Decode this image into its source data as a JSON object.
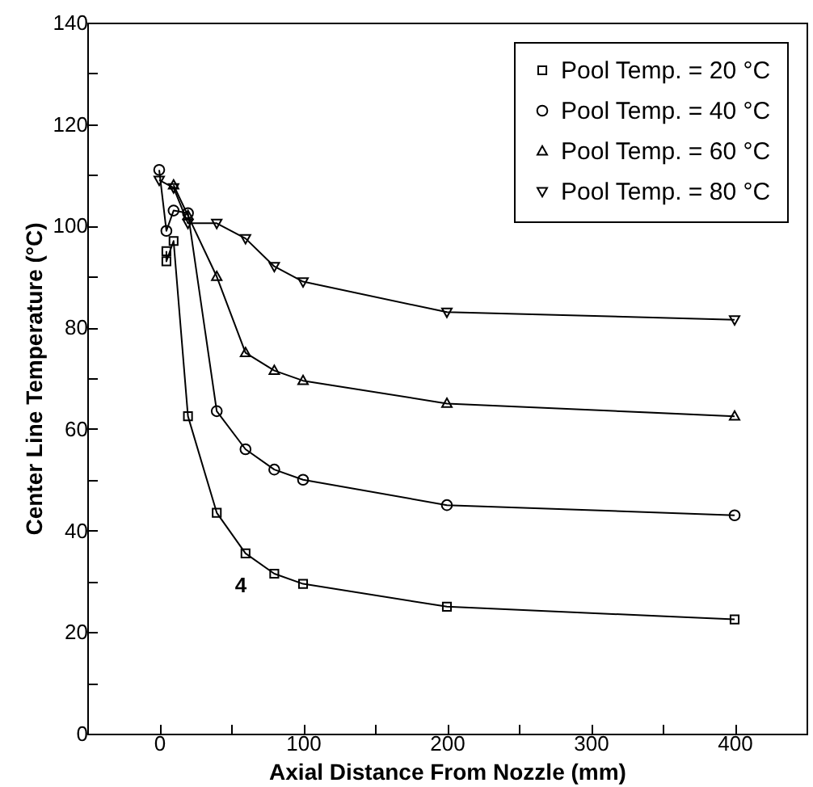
{
  "chart_data": {
    "type": "line",
    "xlabel": "Axial Distance From Nozzle (mm)",
    "ylabel": "Center Line Temperature (°C)",
    "xlim": [
      -50,
      450
    ],
    "xticks": [
      0,
      {
        "value": 50,
        "label": null
      },
      100,
      {
        "value": 150,
        "label": null
      },
      200,
      {
        "value": 250,
        "label": null
      },
      300,
      {
        "value": 350,
        "label": null
      },
      400
    ],
    "ylim": [
      0,
      140
    ],
    "yticks": [
      0,
      {
        "value": 10,
        "label": null
      },
      20,
      {
        "value": 30,
        "label": null
      },
      40,
      {
        "value": 50,
        "label": null
      },
      60,
      {
        "value": 70,
        "label": null
      },
      80,
      {
        "value": 90,
        "label": null
      },
      100,
      {
        "value": 110,
        "label": null
      },
      120,
      {
        "value": 130,
        "label": null
      },
      140
    ],
    "grid": false,
    "legend": "top right",
    "line_style": "solid",
    "annotations": [
      "4"
    ],
    "series": [
      {
        "name": "Pool Temp. = 20 °C",
        "color": "#000000",
        "marker": "square",
        "x": [
          5,
          5,
          10,
          20,
          40,
          60,
          80,
          100,
          200,
          400
        ],
        "values": [
          95,
          93,
          97,
          62.5,
          43.5,
          35.5,
          31.5,
          29.5,
          25,
          22.5
        ]
      },
      {
        "name": "Pool Temp. = 40 °C",
        "color": "#000000",
        "marker": "circle",
        "x": [
          0,
          5,
          10,
          20,
          40,
          60,
          80,
          100,
          200,
          400
        ],
        "values": [
          111,
          99,
          103,
          102.5,
          63.5,
          56,
          52,
          50,
          45,
          43
        ]
      },
      {
        "name": "Pool Temp. = 60 °C",
        "color": "#000000",
        "marker": "triangle",
        "x": [
          10,
          20,
          40,
          60,
          80,
          100,
          200,
          400
        ],
        "values": [
          108,
          102,
          90,
          75,
          71.5,
          69.5,
          65,
          62.5
        ]
      },
      {
        "name": "Pool Temp. = 80 °C",
        "color": "#000000",
        "marker": "triangle-down",
        "x": [
          0,
          10,
          20,
          40,
          60,
          80,
          100,
          200,
          400
        ],
        "values": [
          109,
          107.5,
          100.5,
          100.5,
          97.5,
          92,
          89,
          83,
          81.5
        ]
      }
    ]
  }
}
